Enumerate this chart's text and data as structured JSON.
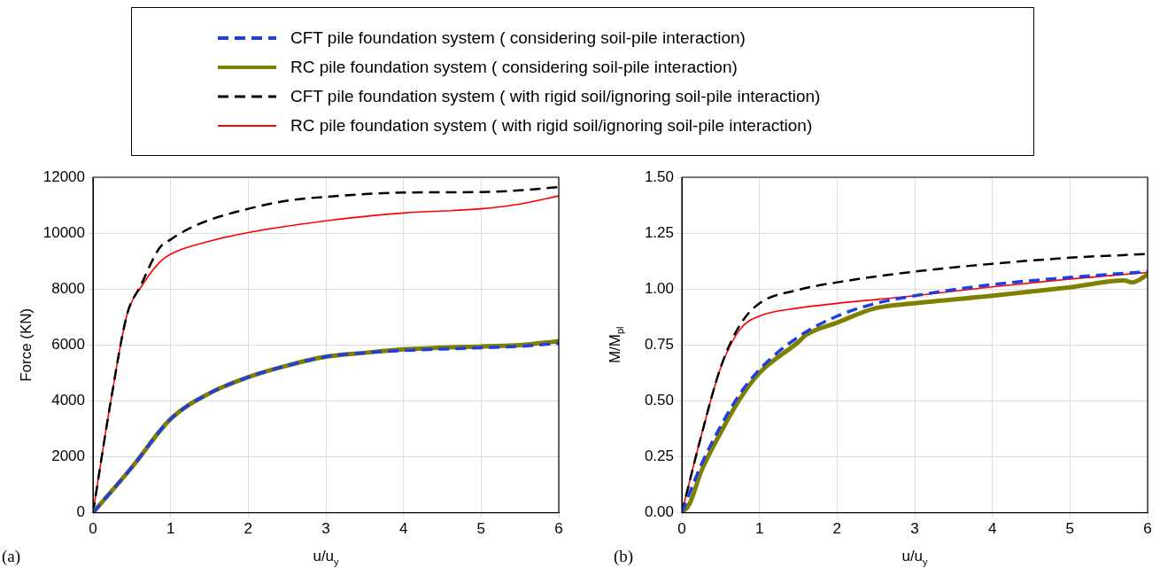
{
  "chart_data": [
    {
      "type": "line",
      "xlabel": "u/u$_{y}$",
      "ylabel": "Force (KN)",
      "annotations": [
        "(a)"
      ],
      "legend": "top",
      "grid": true,
      "marker": "none",
      "xlim": [
        0,
        6
      ],
      "xticks": [
        0,
        1,
        2,
        3,
        4,
        5,
        6
      ],
      "ylim": [
        0,
        12000
      ],
      "yticks": [
        0,
        2000,
        4000,
        6000,
        8000,
        10000,
        12000
      ],
      "series": [
        {
          "name": "CFT pile foundation system ( considering soil-pile interaction)",
          "color": "#1f3de0",
          "line_style": "dashed",
          "x": [
            0,
            0.5,
            1,
            1.5,
            2,
            2.5,
            3,
            3.5,
            4,
            5,
            5.5,
            6
          ],
          "values": [
            0,
            1620,
            3350,
            4270,
            4850,
            5260,
            5580,
            5720,
            5800,
            5900,
            5950,
            6060
          ]
        },
        {
          "name": "RC pile foundation system ( considering soil-pile interaction)",
          "color": "#808000",
          "line_style": "solid",
          "x": [
            0,
            0.5,
            1,
            1.5,
            2,
            2.5,
            3,
            3.5,
            4,
            5,
            5.5,
            6
          ],
          "values": [
            0,
            1620,
            3350,
            4270,
            4850,
            5260,
            5580,
            5720,
            5840,
            5950,
            5990,
            6140
          ]
        },
        {
          "name": "CFT pile foundation system ( with rigid soil/ignoring soil-pile interaction)",
          "color": "#000000",
          "line_style": "dashed",
          "x": [
            0,
            0.23,
            0.44,
            0.61,
            0.86,
            1,
            1.25,
            1.5,
            2,
            2.5,
            3,
            4,
            5,
            5.5,
            6
          ],
          "values": [
            0,
            4000,
            7100,
            8100,
            9480,
            9770,
            10180,
            10470,
            10870,
            11160,
            11300,
            11450,
            11470,
            11530,
            11650
          ]
        },
        {
          "name": "RC pile foundation system ( with rigid soil/ignoring soil-pile interaction)",
          "color": "#ff0000",
          "line_style": "solid",
          "x": [
            0,
            0.23,
            0.44,
            0.61,
            0.86,
            1,
            1.5,
            2,
            3,
            4,
            5,
            5.5,
            6
          ],
          "values": [
            0,
            4000,
            7100,
            8030,
            8960,
            9250,
            9710,
            10020,
            10440,
            10720,
            10870,
            11040,
            11330
          ]
        }
      ]
    },
    {
      "type": "line",
      "xlabel": "u/u$_{y}$",
      "ylabel": "M/M$_{pl}$",
      "annotations": [
        "(b)"
      ],
      "grid": true,
      "marker": "none",
      "xlim": [
        0,
        6
      ],
      "xticks": [
        0,
        1,
        2,
        3,
        4,
        5,
        6
      ],
      "ylim": [
        0,
        1.5
      ],
      "yticks": [
        {
          "value": 0,
          "label": "0.00"
        },
        {
          "value": 0.25,
          "label": "0.25"
        },
        {
          "value": 0.5,
          "label": "0.50"
        },
        {
          "value": 0.75,
          "label": "0.75"
        },
        {
          "value": 1,
          "label": "1.00"
        },
        {
          "value": 1.25,
          "label": "1.25"
        },
        {
          "value": 1.5,
          "label": "1.50"
        }
      ],
      "series": [
        {
          "color": "#1f3de0",
          "line_style": "dashed",
          "x": [
            0,
            0.25,
            0.5,
            0.75,
            1,
            1.5,
            2,
            2.5,
            3,
            4,
            5,
            6
          ],
          "values": [
            0,
            0.214,
            0.387,
            0.532,
            0.64,
            0.786,
            0.879,
            0.936,
            0.97,
            1.02,
            1.052,
            1.078
          ]
        },
        {
          "color": "#808000",
          "line_style": "solid",
          "x": [
            0,
            0.1,
            0.25,
            0.5,
            0.75,
            1,
            1.5,
            1.6,
            2,
            2.5,
            3,
            4,
            5,
            5.7,
            5.8,
            6
          ],
          "values": [
            0,
            0.04,
            0.185,
            0.358,
            0.51,
            0.625,
            0.763,
            0.795,
            0.85,
            0.915,
            0.936,
            0.97,
            1.008,
            1.038,
            1.03,
            1.064
          ]
        },
        {
          "color": "#000000",
          "line_style": "dashed",
          "x": [
            0,
            0.25,
            0.5,
            0.75,
            1,
            1.5,
            2,
            3,
            4,
            5,
            6
          ],
          "values": [
            0,
            0.344,
            0.65,
            0.84,
            0.936,
            0.996,
            1.03,
            1.078,
            1.113,
            1.14,
            1.157
          ]
        },
        {
          "color": "#ff0000",
          "line_style": "solid",
          "x": [
            0,
            0.25,
            0.5,
            0.75,
            1,
            1.5,
            2,
            3,
            4,
            5,
            6
          ],
          "values": [
            0,
            0.344,
            0.647,
            0.82,
            0.879,
            0.915,
            0.936,
            0.97,
            1.01,
            1.045,
            1.074
          ]
        }
      ]
    }
  ]
}
